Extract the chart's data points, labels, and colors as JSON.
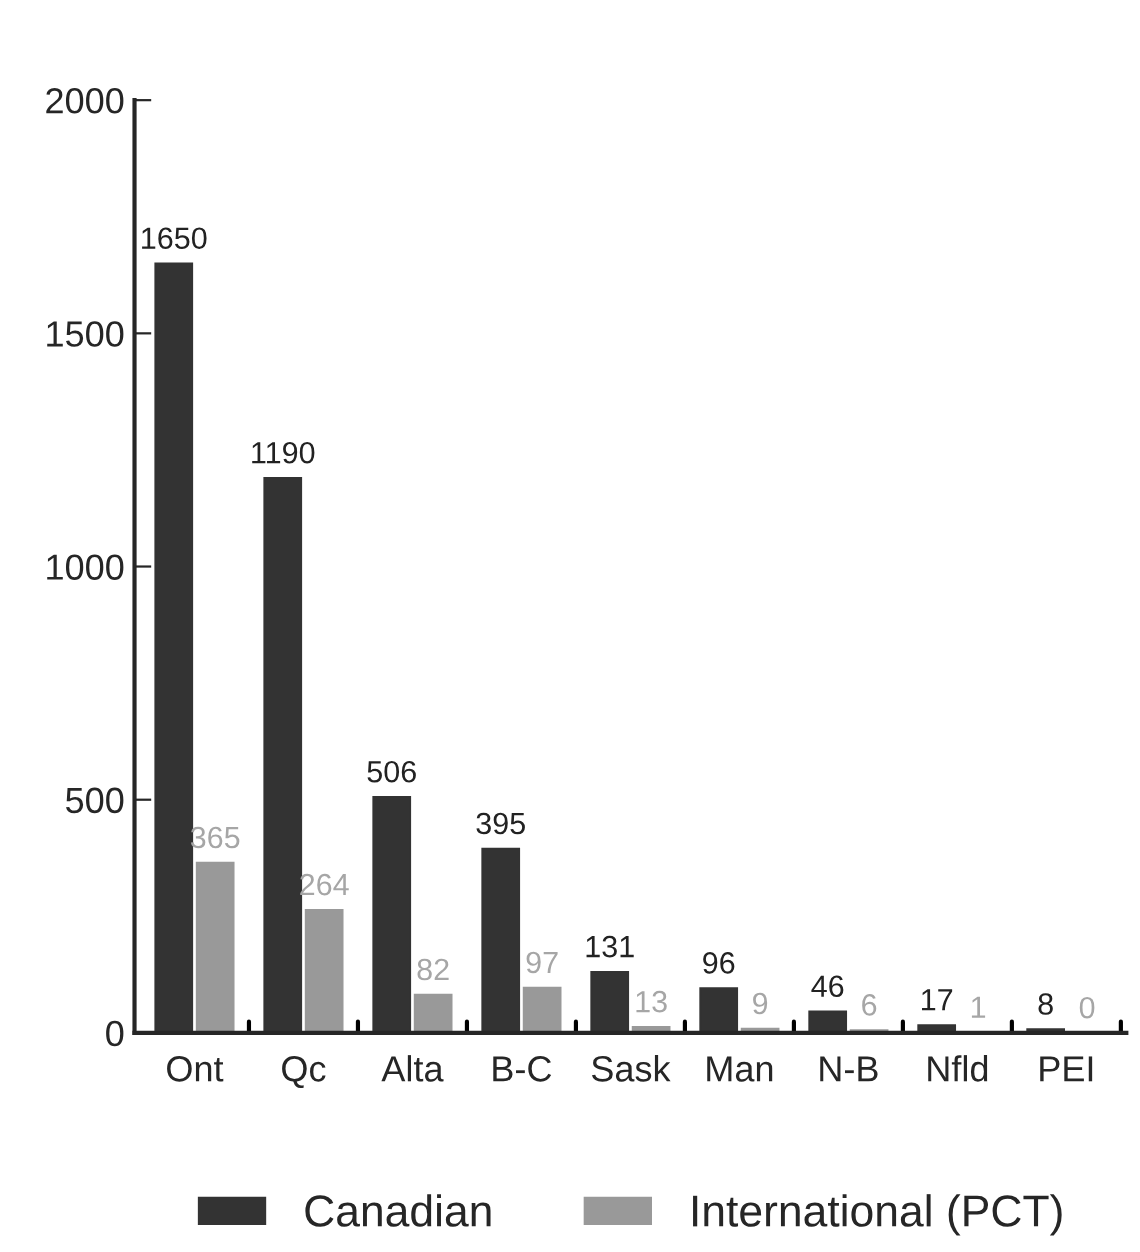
{
  "chart_data": {
    "type": "bar",
    "categories": [
      "Ont",
      "Qc",
      "Alta",
      "B-C",
      "Sask",
      "Man",
      "N-B",
      "Nfld",
      "PEI"
    ],
    "series": [
      {
        "name": "Canadian",
        "color": "#333333",
        "values": [
          1650,
          1190,
          506,
          395,
          131,
          96,
          46,
          17,
          8
        ]
      },
      {
        "name": "International (PCT)",
        "color": "#999999",
        "values": [
          365,
          264,
          82,
          97,
          13,
          9,
          6,
          1,
          0
        ]
      }
    ],
    "ylim": [
      0,
      2000
    ],
    "yticks": [
      0,
      500,
      1000,
      1500,
      2000
    ],
    "data_labels": true,
    "legend": "bottom",
    "grid": false
  }
}
